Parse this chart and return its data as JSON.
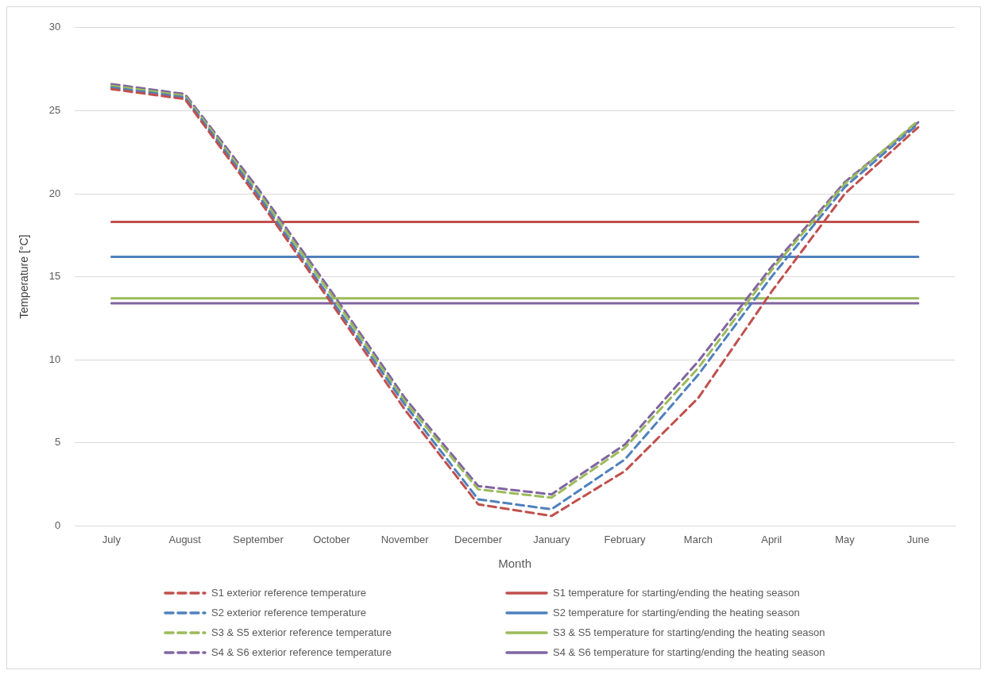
{
  "chart_data": {
    "type": "line",
    "xlabel": "Month",
    "ylabel": "Temperature [°C]",
    "categories": [
      "July",
      "August",
      "September",
      "October",
      "November",
      "December",
      "January",
      "February",
      "March",
      "April",
      "May",
      "June"
    ],
    "ylim": [
      0,
      30
    ],
    "yticks": [
      0,
      5,
      10,
      15,
      20,
      25,
      30
    ],
    "grid": "y",
    "legend": "bottom",
    "marker": "none",
    "series": [
      {
        "name": "S1 exterior reference temperature",
        "color": "#c0504d",
        "line_style": "dashed",
        "values": [
          26.3,
          25.7,
          19.7,
          13.4,
          7.0,
          1.3,
          0.6,
          3.3,
          7.7,
          14.1,
          20.0,
          24.0
        ]
      },
      {
        "name": "S2 exterior reference temperature",
        "color": "#4f81bd",
        "line_style": "dashed",
        "values": [
          26.4,
          25.8,
          19.9,
          13.6,
          7.3,
          1.6,
          1.0,
          4.0,
          9.1,
          15.0,
          20.4,
          24.2
        ]
      },
      {
        "name": "S3 & S5 exterior reference temperature",
        "color": "#9bbb59",
        "line_style": "dashed",
        "values": [
          26.5,
          25.9,
          20.1,
          13.9,
          7.5,
          2.2,
          1.7,
          4.7,
          9.5,
          15.4,
          20.6,
          24.4
        ]
      },
      {
        "name": "S4 & S6 exterior reference temperature",
        "color": "#8064a2",
        "line_style": "dashed",
        "values": [
          26.6,
          26.0,
          20.3,
          14.1,
          7.7,
          2.4,
          1.9,
          4.9,
          9.9,
          15.6,
          20.7,
          24.3
        ]
      },
      {
        "name": "S1 temperature for starting/ending the heating season",
        "color": "#c0504d",
        "line_style": "solid",
        "values": [
          18.3,
          18.3,
          18.3,
          18.3,
          18.3,
          18.3,
          18.3,
          18.3,
          18.3,
          18.3,
          18.3,
          18.3
        ]
      },
      {
        "name": "S2 temperature for starting/ending the heating season",
        "color": "#4f81bd",
        "line_style": "solid",
        "values": [
          16.2,
          16.2,
          16.2,
          16.2,
          16.2,
          16.2,
          16.2,
          16.2,
          16.2,
          16.2,
          16.2,
          16.2
        ]
      },
      {
        "name": "S3 & S5 temperature for starting/ending the heating season",
        "color": "#9bbb59",
        "line_style": "solid",
        "values": [
          13.7,
          13.7,
          13.7,
          13.7,
          13.7,
          13.7,
          13.7,
          13.7,
          13.7,
          13.7,
          13.7,
          13.7
        ]
      },
      {
        "name": "S4 & S6 temperature for starting/ending the heating season",
        "color": "#8064a2",
        "line_style": "solid",
        "values": [
          13.4,
          13.4,
          13.4,
          13.4,
          13.4,
          13.4,
          13.4,
          13.4,
          13.4,
          13.4,
          13.4,
          13.4
        ]
      }
    ]
  }
}
